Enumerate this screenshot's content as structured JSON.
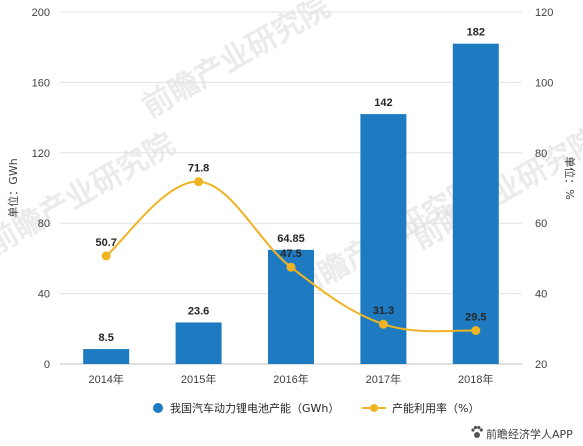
{
  "chart_data": {
    "type": "bar",
    "categories": [
      "2014年",
      "2015年",
      "2016年",
      "2017年",
      "2018年"
    ],
    "series": [
      {
        "name": "我国汽车动力锂电池产能（GWh）",
        "type": "bar",
        "axis": "left",
        "values": [
          8.5,
          23.6,
          64.85,
          142,
          182
        ],
        "labels": [
          "8.5",
          "23.6",
          "64.85",
          "142",
          "182"
        ],
        "color": "#1f7bc1"
      },
      {
        "name": "产能利用率（%）",
        "type": "line",
        "axis": "right",
        "values": [
          50.7,
          71.8,
          47.5,
          31.3,
          29.5
        ],
        "labels": [
          "50.7",
          "71.8",
          "47.5",
          "31.3",
          "29.5"
        ],
        "color": "#f0b323"
      }
    ],
    "ylabel_left": "单位：GWh",
    "ylabel_right": "单位：%",
    "ylim_left": [
      0,
      200
    ],
    "yticks_left": [
      0,
      40,
      80,
      120,
      160,
      200
    ],
    "ylim_right": [
      20,
      120
    ],
    "yticks_right": [
      20,
      40,
      60,
      80,
      100,
      120
    ],
    "grid": true,
    "legend_position": "bottom"
  },
  "watermark_text": "前瞻产业研究院",
  "source_text": "前瞻经济学人APP",
  "source_icon": "paw-icon"
}
